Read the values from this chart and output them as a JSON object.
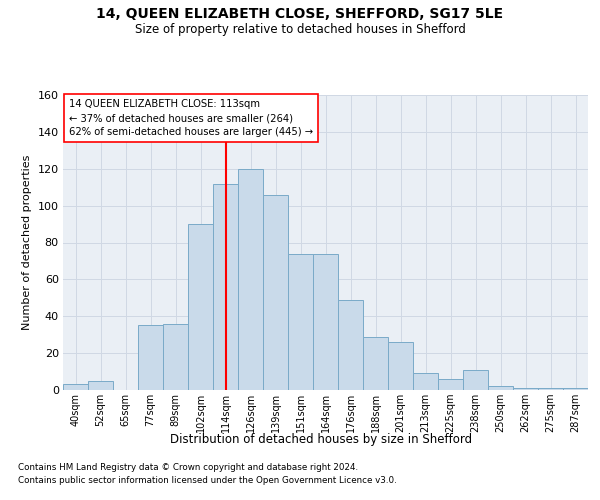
{
  "title1": "14, QUEEN ELIZABETH CLOSE, SHEFFORD, SG17 5LE",
  "title2": "Size of property relative to detached houses in Shefford",
  "xlabel": "Distribution of detached houses by size in Shefford",
  "ylabel": "Number of detached properties",
  "categories": [
    "40sqm",
    "52sqm",
    "65sqm",
    "77sqm",
    "89sqm",
    "102sqm",
    "114sqm",
    "126sqm",
    "139sqm",
    "151sqm",
    "164sqm",
    "176sqm",
    "188sqm",
    "201sqm",
    "213sqm",
    "225sqm",
    "238sqm",
    "250sqm",
    "262sqm",
    "275sqm",
    "287sqm"
  ],
  "bar_values": [
    3,
    5,
    0,
    35,
    36,
    90,
    112,
    120,
    106,
    74,
    74,
    49,
    29,
    26,
    9,
    6,
    11,
    2,
    1,
    1,
    1
  ],
  "bar_color": "#c9daea",
  "bar_edge_color": "#7aaac8",
  "vline_color": "red",
  "vline_index": 6,
  "annotation_title": "14 QUEEN ELIZABETH CLOSE: 113sqm",
  "annotation_line1": "← 37% of detached houses are smaller (264)",
  "annotation_line2": "62% of semi-detached houses are larger (445) →",
  "grid_color": "#d0d8e4",
  "bg_color": "#eaeff5",
  "footer1": "Contains HM Land Registry data © Crown copyright and database right 2024.",
  "footer2": "Contains public sector information licensed under the Open Government Licence v3.0.",
  "ylim": [
    0,
    160
  ],
  "yticks": [
    0,
    20,
    40,
    60,
    80,
    100,
    120,
    140,
    160
  ]
}
